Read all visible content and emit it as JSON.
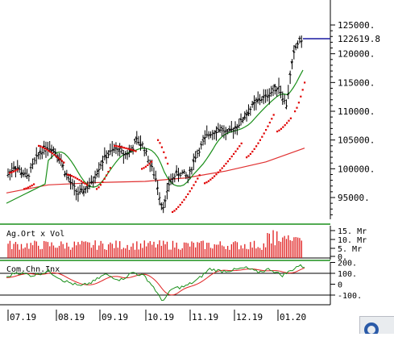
{
  "chart_data": [
    {
      "type": "ohlc",
      "ylim": [
        91000,
        128000
      ],
      "y_ticks": [
        "125000.",
        "120000.",
        "115000.",
        "110000.",
        "105000.",
        "100000.",
        "95000."
      ],
      "y_tick_values": [
        125000,
        120000,
        115000,
        110000,
        105000,
        100000,
        95000
      ],
      "last_value_label": "122619.8",
      "last_value": 122619.8,
      "overlays": [
        "parabolic-sar",
        "moving-average-short",
        "moving-average-long"
      ],
      "colors": {
        "bars": "#000000",
        "sar": "#e00000",
        "ma_short": "#1a8f1a",
        "ma_long": "#e03030",
        "last_line": "#1a1aa0"
      }
    },
    {
      "type": "bar",
      "label": "Ag.Ort x Vol",
      "y_ticks": [
        "15. Mr",
        "10. Mr",
        "5. Mr",
        "0."
      ],
      "colors": {
        "bars": "#e02020"
      }
    },
    {
      "type": "line",
      "label": "Com.Chn.Inx",
      "y_ticks": [
        "200.",
        "100.",
        "0",
        "-100."
      ],
      "y_tick_values": [
        200,
        100,
        0,
        -100
      ],
      "colors": {
        "cci": "#1a8f1a",
        "signal": "#e02020"
      }
    }
  ],
  "x_ticks": [
    "07.19",
    "08.19",
    "09.19",
    "10.19",
    "11.19",
    "12.19",
    "01.20"
  ]
}
